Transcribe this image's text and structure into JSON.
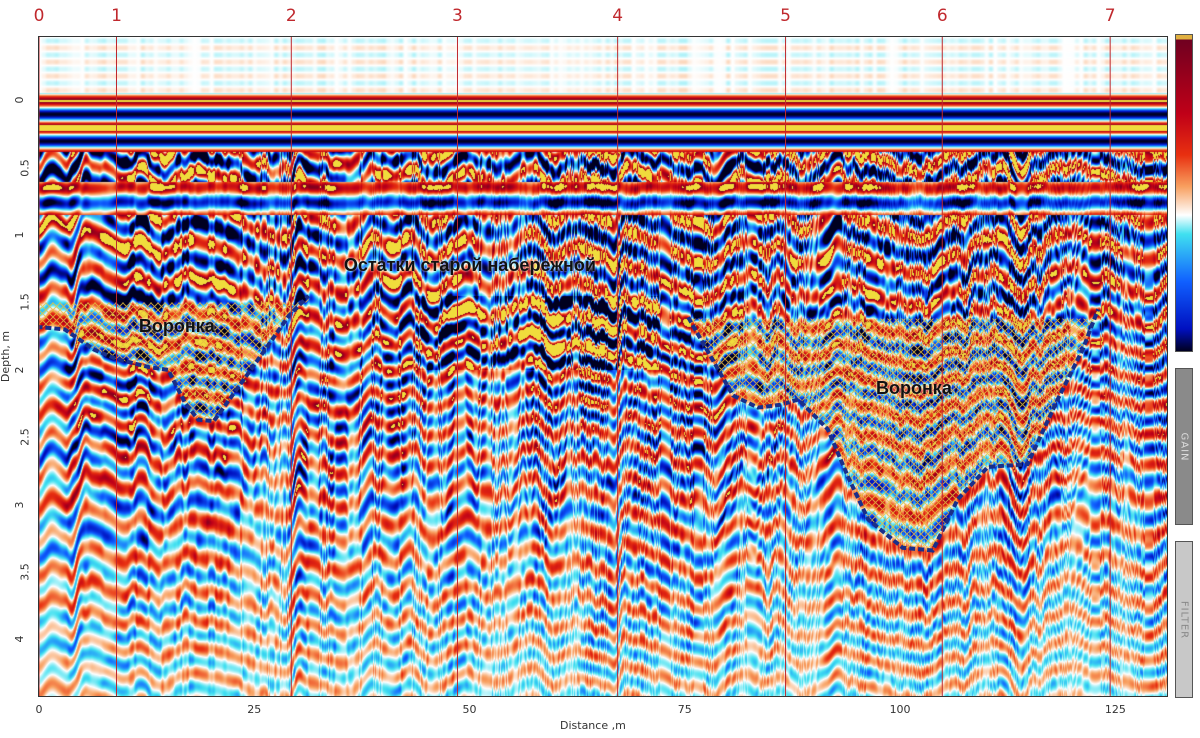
{
  "chart_data": {
    "type": "heatmap",
    "xlabel": "Distance ,m",
    "ylabel": "Depth, m",
    "xlim": [
      0,
      131
    ],
    "ylim": [
      -0.47,
      4.42
    ],
    "y_inverted": true,
    "xticks": [
      "0",
      "25",
      "50",
      "75",
      "100",
      "125"
    ],
    "yticks": [
      "0",
      "0.5",
      "1",
      "1.5",
      "2",
      "2.5",
      "3",
      "3.5",
      "4"
    ],
    "colormap": [
      "#000020",
      "#0010c0",
      "#1060ff",
      "#40e0f0",
      "#ffffff",
      "#f8a060",
      "#e83010",
      "#c00018",
      "#700020"
    ],
    "markers": [
      {
        "label": "0",
        "x": 0
      },
      {
        "label": "1",
        "x": 9.0
      },
      {
        "label": "2",
        "x": 29.3
      },
      {
        "label": "3",
        "x": 48.6
      },
      {
        "label": "4",
        "x": 67.2
      },
      {
        "label": "5",
        "x": 86.7
      },
      {
        "label": "6",
        "x": 104.9
      },
      {
        "label": "7",
        "x": 124.4
      }
    ],
    "marker_color": "#c0282d",
    "annotations": [
      {
        "text": "Воронка",
        "x": 11.6,
        "y": 1.6
      },
      {
        "text": "Остатки старой набережной",
        "x": 35.4,
        "y": 1.15
      },
      {
        "text": "Воронка",
        "x": 97.2,
        "y": 2.06
      }
    ],
    "outlines": [
      {
        "name_text": "Воронка",
        "top": 1.5,
        "points": [
          [
            -0.3,
            1.68
          ],
          [
            3,
            1.7
          ],
          [
            6.4,
            1.85
          ],
          [
            9,
            1.92
          ],
          [
            12.8,
            1.98
          ],
          [
            15,
            2.0
          ],
          [
            17,
            2.25
          ],
          [
            18.5,
            2.37
          ],
          [
            20.3,
            2.38
          ],
          [
            23.8,
            2.07
          ],
          [
            26.7,
            1.81
          ],
          [
            29,
            1.6
          ],
          [
            31.3,
            1.45
          ]
        ]
      },
      {
        "name_text": "Воронка",
        "top": 1.62,
        "points": [
          [
            75.4,
            1.61
          ],
          [
            78,
            1.9
          ],
          [
            80.6,
            2.19
          ],
          [
            83.5,
            2.28
          ],
          [
            86,
            2.26
          ],
          [
            88.2,
            2.22
          ],
          [
            91.6,
            2.44
          ],
          [
            94,
            2.8
          ],
          [
            96.3,
            3.11
          ],
          [
            100.3,
            3.32
          ],
          [
            103.8,
            3.34
          ],
          [
            106.7,
            2.96
          ],
          [
            110.2,
            2.72
          ],
          [
            114.8,
            2.7
          ],
          [
            118.3,
            2.22
          ],
          [
            121.2,
            1.85
          ],
          [
            123,
            1.55
          ]
        ]
      }
    ],
    "outline_color": "#1a2f8a",
    "hatch_color": "#e8c040"
  },
  "side_panels": {
    "gain": "GAIN",
    "filter": "FILTER"
  }
}
